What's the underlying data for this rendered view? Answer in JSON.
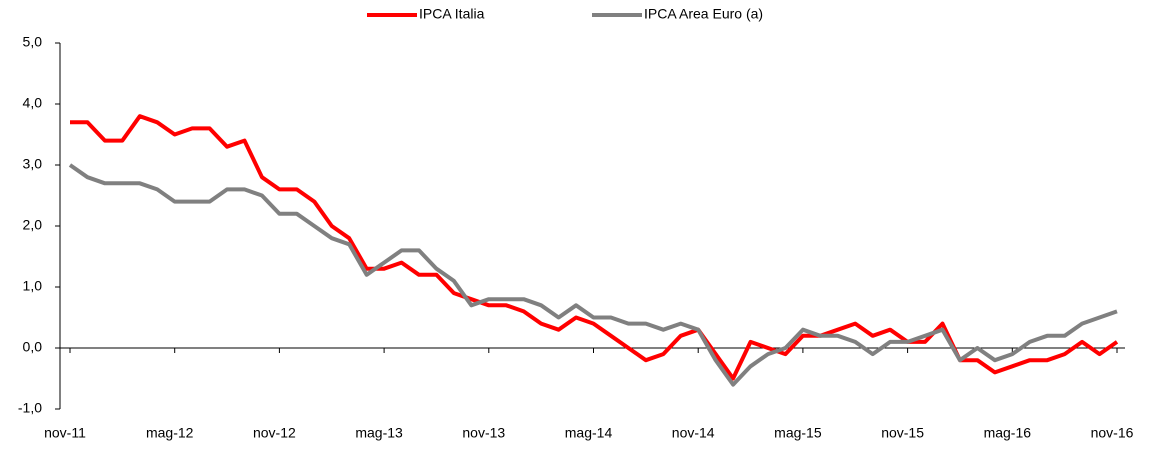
{
  "chart_data": {
    "type": "line",
    "categories": [
      "nov-11",
      null,
      null,
      null,
      null,
      null,
      "mag-12",
      null,
      null,
      null,
      null,
      null,
      "nov-12",
      null,
      null,
      null,
      null,
      null,
      "mag-13",
      null,
      null,
      null,
      null,
      null,
      "nov-13",
      null,
      null,
      null,
      null,
      null,
      "mag-14",
      null,
      null,
      null,
      null,
      null,
      "nov-14",
      null,
      null,
      null,
      null,
      null,
      "mag-15",
      null,
      null,
      null,
      null,
      null,
      "nov-15",
      null,
      null,
      null,
      null,
      null,
      "mag-16",
      null,
      null,
      null,
      null,
      null,
      "nov-16"
    ],
    "series": [
      {
        "name": "IPCA Italia",
        "color": "#ff0000",
        "values": [
          3.7,
          3.7,
          3.4,
          3.4,
          3.8,
          3.7,
          3.5,
          3.6,
          3.6,
          3.3,
          3.4,
          2.8,
          2.6,
          2.6,
          2.4,
          2.0,
          1.8,
          1.3,
          1.3,
          1.4,
          1.2,
          1.2,
          0.9,
          0.8,
          0.7,
          0.7,
          0.6,
          0.4,
          0.3,
          0.5,
          0.4,
          0.2,
          0.0,
          -0.2,
          -0.1,
          0.2,
          0.3,
          -0.1,
          -0.5,
          0.1,
          0.0,
          -0.1,
          0.2,
          0.2,
          0.3,
          0.4,
          0.2,
          0.3,
          0.1,
          0.1,
          0.4,
          -0.2,
          -0.2,
          -0.4,
          -0.3,
          -0.2,
          -0.2,
          -0.1,
          0.1,
          -0.1,
          0.1
        ]
      },
      {
        "name": "IPCA Area Euro (a)",
        "color": "#808080",
        "values": [
          3.0,
          2.8,
          2.7,
          2.7,
          2.7,
          2.6,
          2.4,
          2.4,
          2.4,
          2.6,
          2.6,
          2.5,
          2.2,
          2.2,
          2.0,
          1.8,
          1.7,
          1.2,
          1.4,
          1.6,
          1.6,
          1.3,
          1.1,
          0.7,
          0.8,
          0.8,
          0.8,
          0.7,
          0.5,
          0.7,
          0.5,
          0.5,
          0.4,
          0.4,
          0.3,
          0.4,
          0.3,
          -0.2,
          -0.6,
          -0.3,
          -0.1,
          0.0,
          0.3,
          0.2,
          0.2,
          0.1,
          -0.1,
          0.1,
          0.1,
          0.2,
          0.3,
          -0.2,
          0.0,
          -0.2,
          -0.1,
          0.1,
          0.2,
          0.2,
          0.4,
          0.5,
          0.6
        ]
      }
    ],
    "ylim": [
      -1,
      5
    ],
    "yticks": [
      {
        "value": -1,
        "label": "-1,0"
      },
      {
        "value": 0,
        "label": "0,0"
      },
      {
        "value": 1,
        "label": "1,0"
      },
      {
        "value": 2,
        "label": "2,0"
      },
      {
        "value": 3,
        "label": "3,0"
      },
      {
        "value": 4,
        "label": "4,0"
      },
      {
        "value": 5,
        "label": "5,0"
      }
    ],
    "legend": "top"
  }
}
